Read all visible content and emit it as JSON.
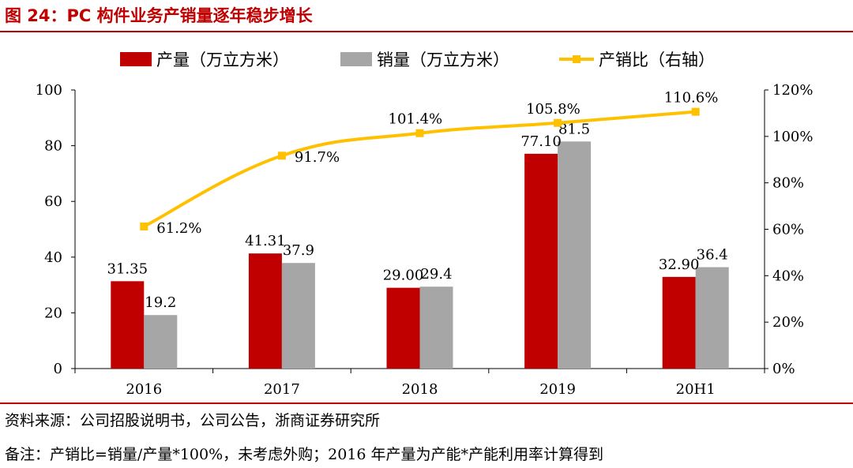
{
  "figure": {
    "title": "图 24：PC 构件业务产销量逐年稳步增长",
    "source": "资料来源：公司招股说明书，公司公告，浙商证券研究所",
    "note": "备注：产销比=销量/产量*100%，未考虑外购；2016 年产量为产能*产能利用率计算得到"
  },
  "colors": {
    "production": "#c00000",
    "sales": "#a6a6a6",
    "ratio": "#ffc000",
    "rule": "#c00000"
  },
  "chart_data": {
    "type": "bar",
    "categories": [
      "2016",
      "2017",
      "2018",
      "2019",
      "20H1"
    ],
    "series": [
      {
        "name": "产量（万立方米）",
        "kind": "bar",
        "axis": "left",
        "values": [
          31.35,
          41.31,
          29.0,
          77.1,
          32.9
        ],
        "labels": [
          "31.35",
          "41.31",
          "29.00",
          "77.10",
          "32.90"
        ]
      },
      {
        "name": "销量（万立方米）",
        "kind": "bar",
        "axis": "left",
        "values": [
          19.2,
          37.9,
          29.4,
          81.5,
          36.4
        ],
        "labels": [
          "19.2",
          "37.9",
          "29.4",
          "81.5",
          "36.4"
        ]
      },
      {
        "name": "产销比（右轴）",
        "kind": "line",
        "axis": "right",
        "values": [
          61.2,
          91.7,
          101.4,
          105.8,
          110.6
        ],
        "labels": [
          "61.2%",
          "91.7%",
          "101.4%",
          "105.8%",
          "110.6%"
        ]
      }
    ],
    "y_left": {
      "min": 0,
      "max": 100,
      "ticks": [
        "0",
        "20",
        "40",
        "60",
        "80",
        "100"
      ]
    },
    "y_right": {
      "min": 0,
      "max": 120,
      "ticks": [
        "0%",
        "20%",
        "40%",
        "60%",
        "80%",
        "100%",
        "120%"
      ]
    },
    "legend_position": "top",
    "grid": false
  }
}
